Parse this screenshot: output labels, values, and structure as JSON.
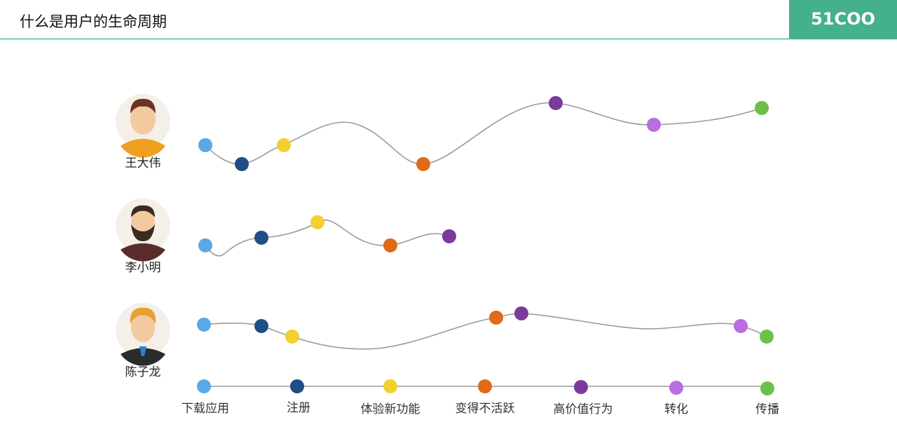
{
  "header": {
    "title": "什么是用户的生命周期",
    "brand": "51COO"
  },
  "users": [
    {
      "name": "王大伟"
    },
    {
      "name": "李小明"
    },
    {
      "name": "陈子龙"
    }
  ],
  "stages": [
    "下载应用",
    "注册",
    "体验新功能",
    "变得不活跃",
    "高价值行为",
    "转化",
    "传播"
  ]
}
